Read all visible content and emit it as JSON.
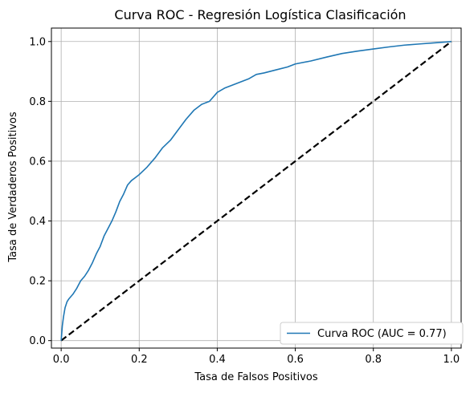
{
  "chart_data": {
    "type": "line",
    "title": "Curva ROC - Regresión Logística Clasificación",
    "xlabel": "Tasa de Falsos Positivos",
    "ylabel": "Tasa de Verdaderos Positivos",
    "xlim": [
      -0.025,
      1.025
    ],
    "ylim": [
      -0.025,
      1.045
    ],
    "xticks": [
      0.0,
      0.2,
      0.4,
      0.6,
      0.8,
      1.0
    ],
    "yticks": [
      0.0,
      0.2,
      0.4,
      0.6,
      0.8,
      1.0
    ],
    "xtick_labels": [
      "0.0",
      "0.2",
      "0.4",
      "0.6",
      "0.8",
      "1.0"
    ],
    "ytick_labels": [
      "0.0",
      "0.2",
      "0.4",
      "0.6",
      "0.8",
      "1.0"
    ],
    "grid": true,
    "legend_position": "lower-right",
    "series": [
      {
        "name": "Curva ROC (AUC = 0.77)",
        "color": "#1f77b4",
        "style": "solid",
        "x": [
          0.0,
          0.003,
          0.006,
          0.01,
          0.015,
          0.02,
          0.03,
          0.04,
          0.05,
          0.06,
          0.07,
          0.08,
          0.09,
          0.1,
          0.11,
          0.12,
          0.13,
          0.14,
          0.15,
          0.16,
          0.17,
          0.18,
          0.19,
          0.2,
          0.22,
          0.24,
          0.26,
          0.28,
          0.3,
          0.32,
          0.34,
          0.36,
          0.38,
          0.4,
          0.42,
          0.44,
          0.46,
          0.48,
          0.5,
          0.52,
          0.55,
          0.58,
          0.6,
          0.64,
          0.68,
          0.72,
          0.76,
          0.8,
          0.84,
          0.88,
          0.92,
          0.96,
          1.0
        ],
        "y": [
          0.0,
          0.05,
          0.08,
          0.11,
          0.13,
          0.14,
          0.155,
          0.175,
          0.2,
          0.215,
          0.235,
          0.26,
          0.29,
          0.315,
          0.35,
          0.375,
          0.4,
          0.43,
          0.465,
          0.49,
          0.52,
          0.535,
          0.545,
          0.555,
          0.58,
          0.61,
          0.645,
          0.67,
          0.705,
          0.74,
          0.77,
          0.79,
          0.8,
          0.83,
          0.845,
          0.855,
          0.865,
          0.875,
          0.89,
          0.895,
          0.905,
          0.915,
          0.925,
          0.935,
          0.948,
          0.96,
          0.968,
          0.975,
          0.982,
          0.988,
          0.992,
          0.996,
          1.0
        ]
      },
      {
        "color": "#000000",
        "style": "dashed",
        "x": [
          0.0,
          1.0
        ],
        "y": [
          0.0,
          1.0
        ]
      }
    ]
  }
}
